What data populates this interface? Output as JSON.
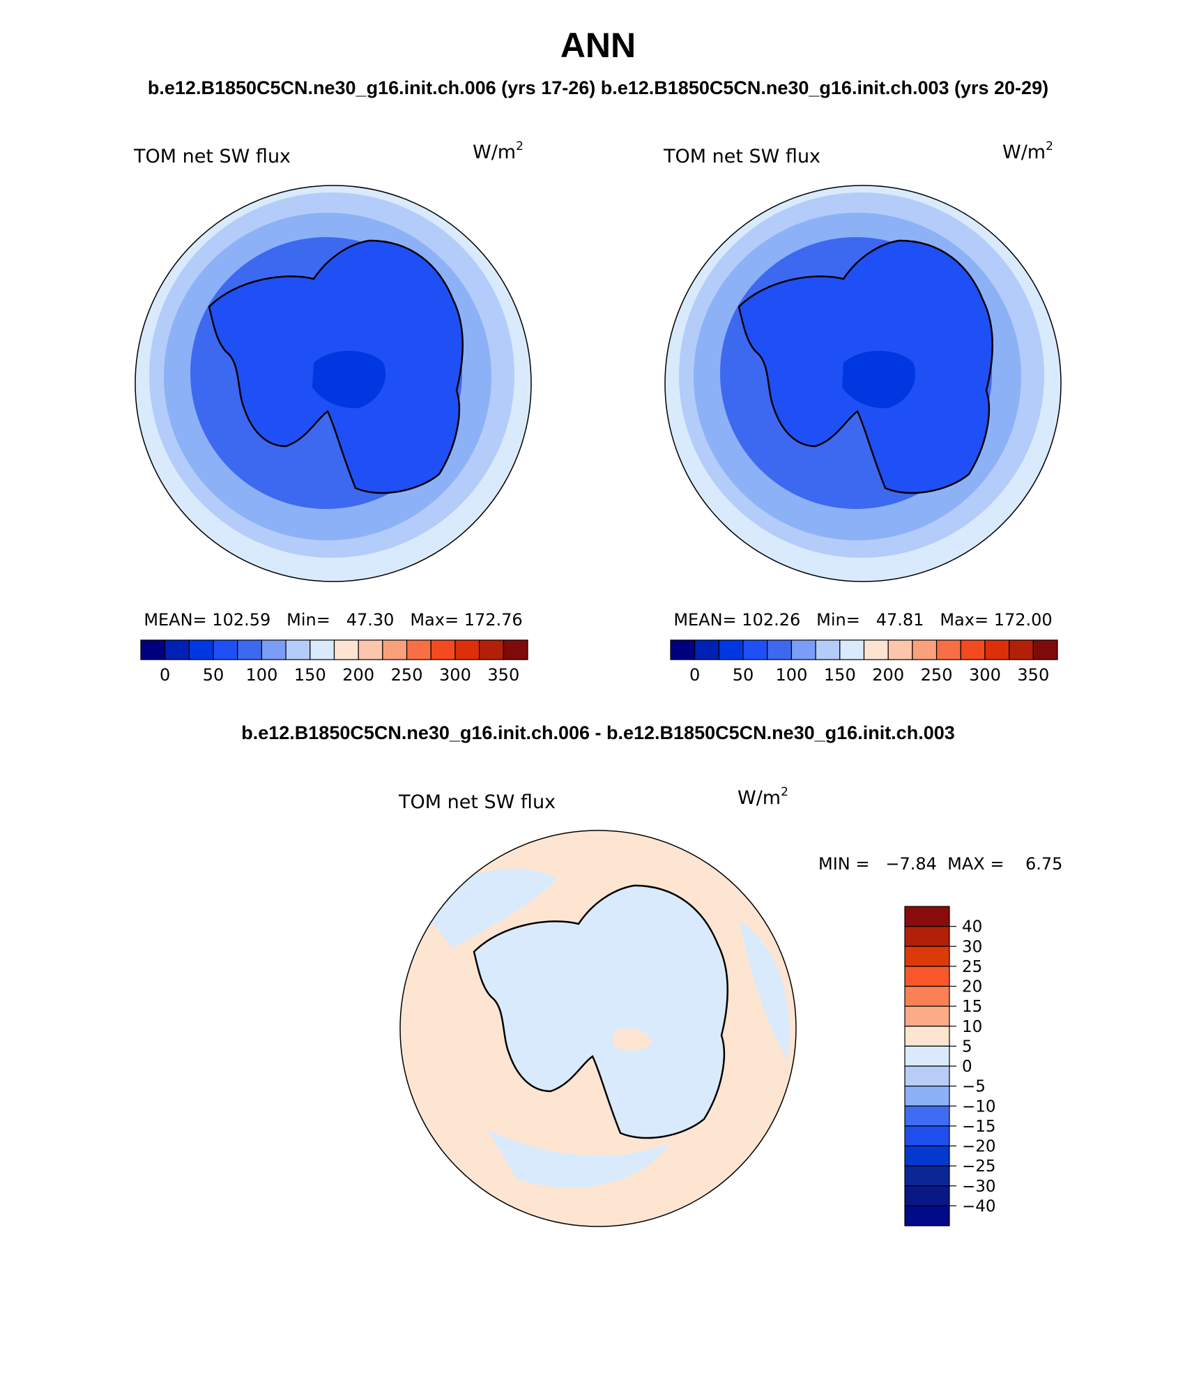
{
  "page": {
    "title": "ANN",
    "subtitle": "b.e12.B1850C5CN.ne30_g16.init.ch.006 (yrs 17-26) b.e12.B1850C5CN.ne30_g16.init.ch.003 (yrs 20-29)",
    "diff_title": "b.e12.B1850C5CN.ne30_g16.init.ch.006 - b.e12.B1850C5CN.ne30_g16.init.ch.003"
  },
  "panels": [
    {
      "id": "case-006",
      "variable_label": "TOM net SW flux",
      "units": "W/m",
      "units_exp": "2",
      "stats": "MEAN= 102.59   Min=   47.30   Max= 172.76",
      "mean": 102.59,
      "min": 47.3,
      "max": 172.76
    },
    {
      "id": "case-003",
      "variable_label": "TOM net SW flux",
      "units": "W/m",
      "units_exp": "2",
      "stats": "MEAN= 102.26   Min=   47.81   Max= 172.00",
      "mean": 102.26,
      "min": 47.81,
      "max": 172.0
    }
  ],
  "diff_panel": {
    "variable_label": "TOM net SW flux",
    "units": "W/m",
    "units_exp": "2",
    "stats": "MIN =   −7.84  MAX =    6.75",
    "min": -7.84,
    "max": 6.75
  },
  "chart_data": [
    {
      "type": "heatmap",
      "projection": "south polar stereographic",
      "title": "TOM net SW flux",
      "units": "W/m2",
      "colorbar": {
        "orientation": "horizontal",
        "levels": [
          0,
          50,
          100,
          150,
          200,
          250,
          300,
          350
        ],
        "tick_labels": [
          "0",
          "50",
          "100",
          "150",
          "200",
          "250",
          "300",
          "350"
        ],
        "colors": [
          "#00007f",
          "#0021b5",
          "#0037e0",
          "#1f50f5",
          "#3d69f0",
          "#7a9df7",
          "#b4ccf9",
          "#d9eafc",
          "#fde4d2",
          "#fcc6ad",
          "#f9a17c",
          "#f86f45",
          "#f34a1f",
          "#dc2f0a",
          "#b2200a",
          "#7e0a0a"
        ]
      },
      "mean": 102.59,
      "min": 47.3,
      "max": 172.76
    },
    {
      "type": "heatmap",
      "projection": "south polar stereographic",
      "title": "TOM net SW flux",
      "units": "W/m2",
      "colorbar": {
        "orientation": "horizontal",
        "levels": [
          0,
          50,
          100,
          150,
          200,
          250,
          300,
          350
        ],
        "tick_labels": [
          "0",
          "50",
          "100",
          "150",
          "200",
          "250",
          "300",
          "350"
        ]
      },
      "mean": 102.26,
      "min": 47.81,
      "max": 172.0
    },
    {
      "type": "heatmap",
      "projection": "south polar stereographic",
      "title": "TOM net SW flux",
      "units": "W/m2",
      "colorbar": {
        "orientation": "vertical",
        "levels": [
          40,
          30,
          25,
          20,
          15,
          10,
          5,
          0,
          -5,
          -10,
          -15,
          -20,
          -25,
          -30,
          -40
        ],
        "tick_labels": [
          "40",
          "30",
          "25",
          "20",
          "15",
          "10",
          "5",
          "0",
          "−5",
          "−10",
          "−15",
          "−20",
          "−25",
          "−30",
          "−40"
        ],
        "colors_top_to_bottom": [
          "#8a0c0c",
          "#b3200a",
          "#dd3a0c",
          "#f8582a",
          "#fb8055",
          "#fbab86",
          "#fde5d2",
          "#d9eafc",
          "#b7cdf7",
          "#8db1f7",
          "#3f6cf2",
          "#1e4fee",
          "#0538cf",
          "#0a2795",
          "#0a1787",
          "#000b87"
        ]
      },
      "min": -7.84,
      "max": 6.75
    }
  ]
}
